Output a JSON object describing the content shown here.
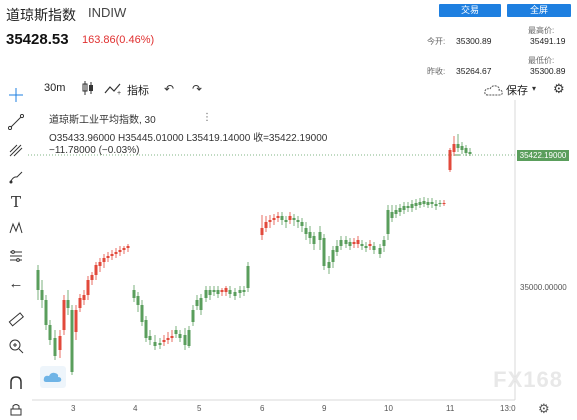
{
  "header": {
    "title": "道琼斯指数",
    "code": "INDIW",
    "trade_button": "交易",
    "fullscreen_button": "全屏",
    "price": "35428.53",
    "change": "163.86(0.46%)",
    "stats": {
      "open_label": "今开:",
      "open_value": "35300.89",
      "high_label": "最高价:",
      "high_value": "35491.19",
      "prev_close_label": "昨收:",
      "prev_close_value": "35264.67",
      "low_label": "最低价:",
      "low_value": "35300.89"
    }
  },
  "toolbar": {
    "interval": "30m",
    "indicators_label": "指标",
    "save_label": "保存"
  },
  "legend": {
    "name": "道琼斯工业平均指数, 30",
    "ohlc": "O35433.96000  H35445.01000  L35419.14000  收=35422.19000",
    "change": "−11.78000 (−0.03%)"
  },
  "chart_data": {
    "type": "candlestick",
    "x_tick_labels": [
      "3",
      "4",
      "5",
      "6",
      "9",
      "10",
      "11",
      "13:0"
    ],
    "y_tick_labels": [
      "35000.00000"
    ],
    "last_price_label": "35422.19000",
    "up_color": "#e2493b",
    "down_color": "#5a9e5c"
  },
  "watermark": "FX168"
}
